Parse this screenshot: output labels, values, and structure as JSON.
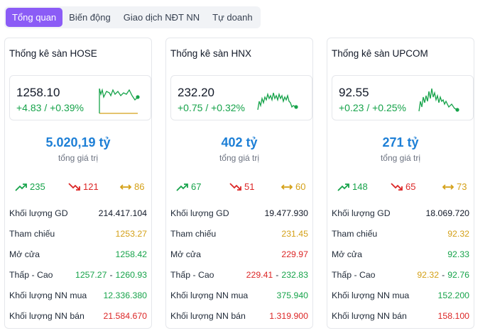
{
  "tabs": [
    {
      "label": "Tổng quan",
      "active": true
    },
    {
      "label": "Biến động",
      "active": false
    },
    {
      "label": "Giao dịch NĐT NN",
      "active": false
    },
    {
      "label": "Tự doanh",
      "active": false
    }
  ],
  "colors": {
    "up": "#16a34a",
    "down": "#dc2626",
    "ref": "#d4a017",
    "accent": "#8b5cf6",
    "value": "#1d7fd6"
  },
  "cards": [
    {
      "title": "Thống kê sàn HOSE",
      "price": "1258.10",
      "change": "+4.83 / +0.39%",
      "value": "5.020,19 tỷ",
      "value_label": "tổng giá trị",
      "advances": "235",
      "declines": "121",
      "unchanged": "86",
      "labels": {
        "volume": "Khối lượng GD",
        "ref": "Tham chiếu",
        "open": "Mở cửa",
        "range": "Thấp - Cao",
        "foreign_buy": "Khối lượng NN mua",
        "foreign_sell": "Khối lượng NN bán"
      },
      "volume": "214.417.104",
      "ref_price": "1253.27",
      "open_price": "1258.42",
      "low": "1257.27",
      "high": "1260.93",
      "range_sep": "-",
      "foreign_buy": "12.336.380",
      "foreign_sell": "21.584.670"
    },
    {
      "title": "Thống kê sàn HNX",
      "price": "232.20",
      "change": "+0.75 / +0.32%",
      "value": "402 tỷ",
      "value_label": "tổng giá trị",
      "advances": "67",
      "declines": "51",
      "unchanged": "60",
      "labels": {
        "volume": "Khối lượng GD",
        "ref": "Tham chiếu",
        "open": "Mở cửa",
        "range": "Thấp - Cao",
        "foreign_buy": "Khối lượng NN mua",
        "foreign_sell": "Khối lượng NN bán"
      },
      "volume": "19.477.930",
      "ref_price": "231.45",
      "open_price": "229.97",
      "low": "229.41",
      "high": "232.83",
      "range_sep": "-",
      "foreign_buy": "375.940",
      "foreign_sell": "1.319.900"
    },
    {
      "title": "Thống kê sàn UPCOM",
      "price": "92.55",
      "change": "+0.23 / +0.25%",
      "value": "271 tỷ",
      "value_label": "tổng giá trị",
      "advances": "148",
      "declines": "65",
      "unchanged": "73",
      "labels": {
        "volume": "Khối lượng GD",
        "ref": "Tham chiếu",
        "open": "Mở cửa",
        "range": "Thấp - Cao",
        "foreign_buy": "Khối lượng NN mua",
        "foreign_sell": "Khối lượng NN bán"
      },
      "volume": "18.069.720",
      "ref_price": "92.32",
      "open_price": "92.33",
      "low": "92.32",
      "high": "92.76",
      "range_sep": "-",
      "foreign_buy": "152.200",
      "foreign_sell": "158.100"
    }
  ]
}
